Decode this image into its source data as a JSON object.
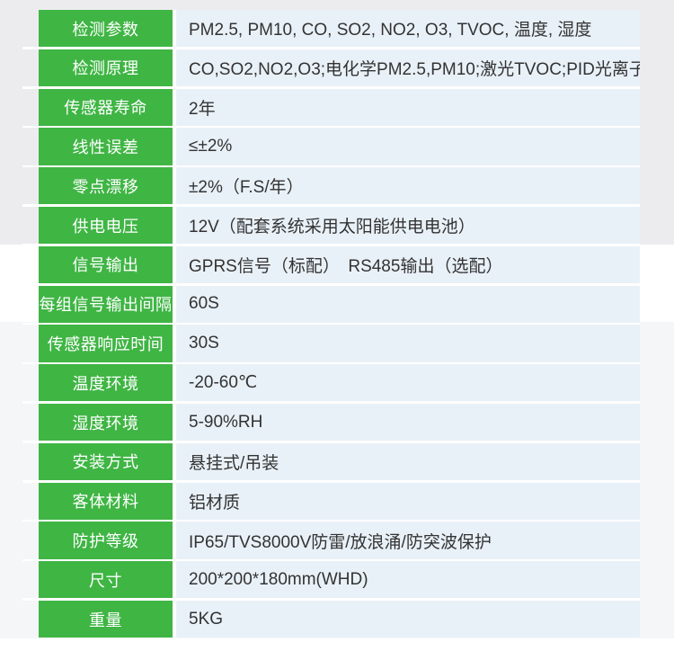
{
  "colors": {
    "page_bg": "#ffffff",
    "band_top": "#ececee",
    "band_low": "#f5f6f7",
    "separator": "#ffffff",
    "label_bg": "#3fb544",
    "label_text": "#ffffff",
    "value_bg": "#e9f1f8",
    "value_text": "#333333"
  },
  "table": {
    "rows": [
      {
        "label": "检测参数",
        "value": "PM2.5, PM10, CO, SO2, NO2, O3, TVOC, 温度, 湿度"
      },
      {
        "label": "检测原理",
        "value": "CO,SO2,NO2,O3;电化学PM2.5,PM10;激光TVOC;PID光离子"
      },
      {
        "label": "传感器寿命",
        "value": "2年"
      },
      {
        "label": "线性误差",
        "value": "≤±2%"
      },
      {
        "label": "零点漂移",
        "value": "±2%（F.S/年）"
      },
      {
        "label": "供电电压",
        "value": "12V（配套系统采用太阳能供电电池）"
      },
      {
        "label": "信号输出",
        "value": "GPRS信号（标配）　RS485输出（选配）"
      },
      {
        "label": "每组信号输出间隔",
        "value": "60S"
      },
      {
        "label": "传感器响应时间",
        "value": "30S"
      },
      {
        "label": "温度环境",
        "value": "-20-60℃"
      },
      {
        "label": "湿度环境",
        "value": "5-90%RH"
      },
      {
        "label": "安装方式",
        "value": "悬挂式/吊装"
      },
      {
        "label": "客体材料",
        "value": "铝材质"
      },
      {
        "label": "防护等级",
        "value": "IP65/TVS8000V防雷/放浪涌/防突波保护"
      },
      {
        "label": "尺寸",
        "value": "200*200*180mm(WHD)"
      },
      {
        "label": "重量",
        "value": "5KG"
      }
    ]
  }
}
